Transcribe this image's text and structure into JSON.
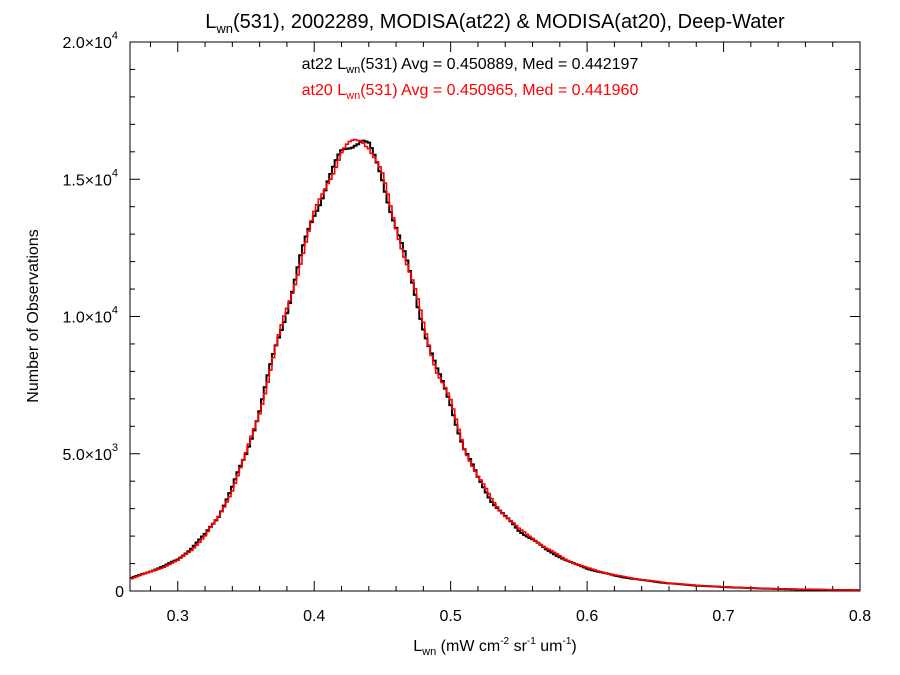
{
  "chart_data": {
    "type": "line",
    "title": {
      "main": "L",
      "sub": "wn",
      "rest": "(531), 2002289, MODISA(at22) & MODISA(at20), Deep-Water"
    },
    "xlabel": {
      "main": "L",
      "sub": "wn",
      "unit_open": " (mW cm",
      "sup1": "-2",
      "mid1": " sr",
      "sup2": "-1",
      "mid2": " um",
      "sup3": "-1",
      "close": ")"
    },
    "ylabel": "Number of Observations",
    "xlim": [
      0.265,
      0.8
    ],
    "ylim": [
      0,
      20000
    ],
    "x_ticks": [
      {
        "value": 0.3,
        "label": "0.3"
      },
      {
        "value": 0.4,
        "label": "0.4"
      },
      {
        "value": 0.5,
        "label": "0.5"
      },
      {
        "value": 0.6,
        "label": "0.6"
      },
      {
        "value": 0.7,
        "label": "0.7"
      },
      {
        "value": 0.8,
        "label": "0.8"
      }
    ],
    "y_ticks": [
      {
        "value": 0,
        "base": "0",
        "exp": ""
      },
      {
        "value": 5000,
        "base": "5.0×10",
        "exp": "3"
      },
      {
        "value": 10000,
        "base": "1.0×10",
        "exp": "4"
      },
      {
        "value": 15000,
        "base": "1.5×10",
        "exp": "4"
      },
      {
        "value": 20000,
        "base": "2.0×10",
        "exp": "4"
      }
    ],
    "annotations": [
      {
        "color": "#000000",
        "pre": "at22 L",
        "sub": "wn",
        "post": "(531) Avg = 0.450889, Med = 0.442197"
      },
      {
        "color": "#ff0000",
        "pre": "at20 L",
        "sub": "wn",
        "post": "(531) Avg = 0.450965, Med = 0.441960"
      }
    ],
    "x": [
      0.265,
      0.28,
      0.29,
      0.3,
      0.31,
      0.32,
      0.33,
      0.34,
      0.35,
      0.36,
      0.37,
      0.38,
      0.39,
      0.4,
      0.41,
      0.42,
      0.43,
      0.435,
      0.44,
      0.45,
      0.46,
      0.47,
      0.48,
      0.49,
      0.5,
      0.51,
      0.52,
      0.53,
      0.54,
      0.55,
      0.56,
      0.57,
      0.58,
      0.59,
      0.6,
      0.62,
      0.64,
      0.66,
      0.68,
      0.7,
      0.72,
      0.74,
      0.76,
      0.78,
      0.8
    ],
    "series": [
      {
        "name": "at22",
        "color": "#000000",
        "values": [
          450,
          720,
          900,
          1150,
          1550,
          2050,
          2750,
          3750,
          5000,
          6600,
          8500,
          10300,
          12100,
          13700,
          15000,
          15900,
          16400,
          16500,
          16200,
          15000,
          13300,
          11500,
          9700,
          8000,
          6800,
          5200,
          4100,
          3300,
          2700,
          2200,
          1900,
          1500,
          1250,
          1000,
          820,
          560,
          400,
          280,
          200,
          145,
          105,
          75,
          55,
          40,
          30
        ]
      },
      {
        "name": "at20",
        "color": "#ff0000",
        "values": [
          430,
          700,
          880,
          1100,
          1500,
          2000,
          2700,
          3700,
          4950,
          6550,
          8450,
          10250,
          12050,
          13650,
          15000,
          15900,
          16400,
          16550,
          16250,
          15050,
          13350,
          11550,
          9750,
          8050,
          6850,
          5250,
          4150,
          3350,
          2750,
          2250,
          1950,
          1550,
          1280,
          1020,
          840,
          580,
          410,
          290,
          205,
          150,
          108,
          78,
          57,
          42,
          32
        ]
      }
    ],
    "grid": false,
    "legend": "none"
  }
}
